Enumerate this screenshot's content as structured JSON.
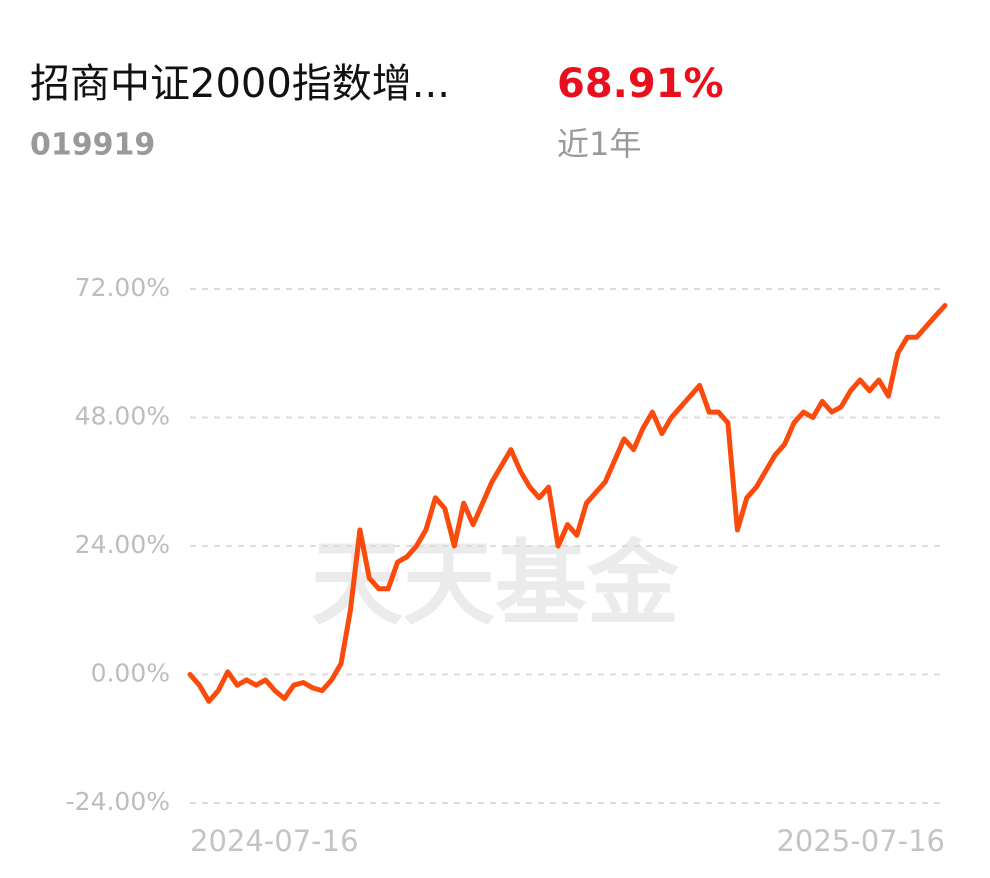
{
  "header": {
    "name": "招商中证2000指数增...",
    "code": "019919",
    "return": "68.91%",
    "period": "近1年"
  },
  "chart_data": {
    "type": "line",
    "watermark": "天天基金",
    "categories": [
      "2024-07-16",
      null,
      null,
      null,
      null,
      null,
      null,
      null,
      null,
      null,
      null,
      null,
      null,
      null,
      null,
      null,
      null,
      null,
      null,
      null,
      null,
      null,
      null,
      null,
      null,
      null,
      null,
      null,
      null,
      null,
      null,
      null,
      null,
      null,
      null,
      null,
      null,
      null,
      null,
      null,
      null,
      null,
      null,
      null,
      null,
      null,
      null,
      null,
      null,
      null,
      null,
      null,
      null,
      null,
      null,
      null,
      null,
      null,
      null,
      null,
      null,
      null,
      null,
      null,
      null,
      null,
      null,
      null,
      null,
      null,
      null,
      null,
      null,
      null,
      null,
      null,
      null,
      null,
      null,
      null,
      "2025-07-16"
    ],
    "series": [
      {
        "color": "#fa4a0c",
        "values": [
          0,
          -2,
          -5,
          -3,
          0.5,
          -2,
          -1,
          -2,
          -1,
          -3,
          -4.5,
          -2,
          -1.5,
          -2.5,
          -3,
          -1,
          2,
          12,
          27,
          18,
          16,
          16,
          21,
          22,
          24,
          27,
          33,
          31,
          24,
          32,
          28,
          32,
          36,
          39,
          42,
          38,
          35,
          33,
          35,
          24,
          28,
          26,
          32,
          34,
          36,
          40,
          44,
          42,
          46,
          49,
          45,
          48,
          50,
          52,
          54,
          49,
          49,
          47,
          27,
          33,
          35,
          38,
          41,
          43,
          47,
          49,
          48,
          51,
          49,
          50,
          53,
          55,
          53,
          55,
          52,
          60,
          63,
          63,
          65,
          67,
          68.91
        ]
      }
    ],
    "ylim": [
      -24,
      72
    ],
    "yticks": [
      {
        "value": 72,
        "label": "72.00%"
      },
      {
        "value": 48,
        "label": "48.00%"
      },
      {
        "value": 24,
        "label": "24.00%"
      },
      {
        "value": 0,
        "label": "0.00%"
      },
      {
        "value": -24,
        "label": "-24.00%"
      }
    ],
    "grid": true
  }
}
